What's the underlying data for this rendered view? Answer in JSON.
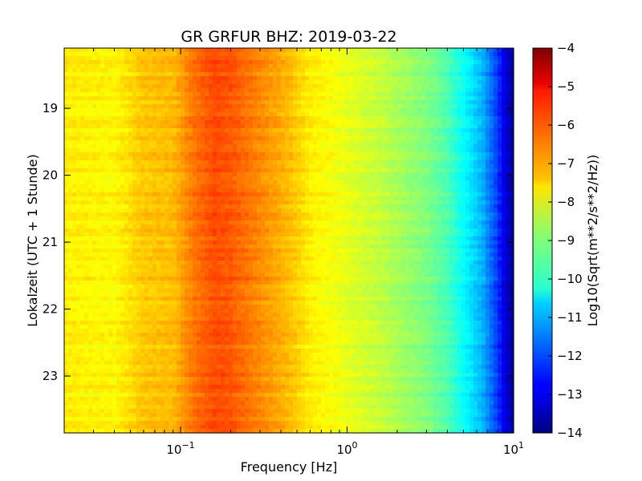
{
  "chart_data": {
    "type": "heatmap",
    "title": "GR GRFUR BHZ: 2019-03-22",
    "xlabel": "Frequency [Hz]",
    "ylabel": "Lokalzeit (UTC + 1 Stunde)",
    "x_scale": "log",
    "x_range_hz": [
      0.02,
      10
    ],
    "x_ticks": [
      {
        "value": 0.1,
        "base": "10",
        "exp": "−1"
      },
      {
        "value": 1,
        "base": "10",
        "exp": "0"
      },
      {
        "value": 10,
        "base": "10",
        "exp": "1"
      }
    ],
    "y_range_hours": [
      18.1,
      23.85
    ],
    "y_inverted": true,
    "y_ticks": [
      {
        "value": 19,
        "label": "19"
      },
      {
        "value": 20,
        "label": "20"
      },
      {
        "value": 21,
        "label": "21"
      },
      {
        "value": 22,
        "label": "22"
      },
      {
        "value": 23,
        "label": "23"
      }
    ],
    "colormap": "jet",
    "colorbar": {
      "label": "Log10(Sqrt(m**2/s**2/Hz))",
      "range": [
        -14,
        -4
      ],
      "ticks": [
        {
          "value": -4,
          "label": "−4"
        },
        {
          "value": -5,
          "label": "−5"
        },
        {
          "value": -6,
          "label": "−6"
        },
        {
          "value": -7,
          "label": "−7"
        },
        {
          "value": -8,
          "label": "−8"
        },
        {
          "value": -9,
          "label": "−9"
        },
        {
          "value": -10,
          "label": "−10"
        },
        {
          "value": -11,
          "label": "−11"
        },
        {
          "value": -12,
          "label": "−12"
        },
        {
          "value": -13,
          "label": "−13"
        },
        {
          "value": -14,
          "label": "−14"
        }
      ]
    },
    "spectrum_profile": {
      "description_units": "frequency [Hz] vs Log10 amplitude",
      "freq_hz": [
        0.02,
        0.04,
        0.06,
        0.09,
        0.12,
        0.16,
        0.2,
        0.3,
        0.45,
        0.6,
        0.8,
        1.0,
        1.5,
        2.0,
        3.0,
        4.0,
        5.0,
        6.5,
        8.0,
        9.0,
        10.0
      ],
      "log_amplitude": [
        -7.6,
        -7.7,
        -7.2,
        -7.1,
        -6.4,
        -6.0,
        -6.1,
        -6.6,
        -7.1,
        -7.6,
        -7.8,
        -8.0,
        -8.3,
        -8.6,
        -9.0,
        -9.5,
        -10.2,
        -11.0,
        -12.2,
        -13.2,
        -13.8
      ]
    },
    "grid": false,
    "legend": "none"
  }
}
